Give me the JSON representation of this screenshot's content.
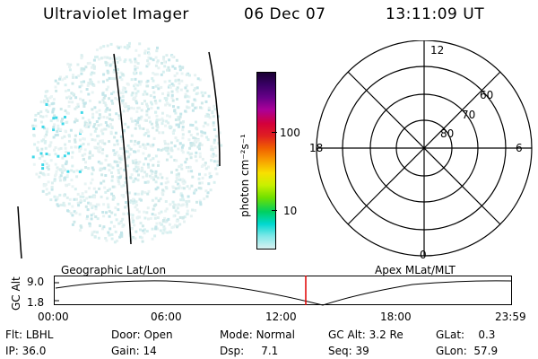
{
  "header": {
    "instrument": "Ultraviolet Imager",
    "date": "06 Dec 07",
    "time": "13:11:09 UT"
  },
  "colorbar": {
    "unit_label": "photon cm⁻²s⁻¹",
    "ticks": [
      "100",
      "10"
    ],
    "colors": [
      "#1a0033",
      "#3a0066",
      "#660088",
      "#aa0099",
      "#d4003a",
      "#e02020",
      "#f06000",
      "#f8a000",
      "#f8e000",
      "#c8f000",
      "#70e000",
      "#00d060",
      "#00d8d0",
      "#80e8e8",
      "#d8f0f0"
    ]
  },
  "polar": {
    "mlt_labels": {
      "top": "12",
      "left": "18",
      "right": "6",
      "bottom": "0"
    },
    "lat_labels": [
      "60",
      "70",
      "80"
    ]
  },
  "timeline": {
    "left_label": "Geographic Lat/Lon",
    "right_label": "Apex MLat/MLT",
    "axis_title": "GC Alt",
    "y_ticks": [
      "9.0",
      "1.8"
    ],
    "x_ticks": [
      "00:00",
      "06:00",
      "12:00",
      "18:00",
      "23:59"
    ],
    "marker_color": "#e00000"
  },
  "status": {
    "flt_label": "Flt:",
    "flt_value": "LBHL",
    "door_label": "Door:",
    "door_value": "Open",
    "mode_label": "Mode:",
    "mode_value": "Normal",
    "gcalt_label": "GC Alt:",
    "gcalt_value": "3.2 Re",
    "glat_label": "GLat:",
    "glat_value": "0.3",
    "ip_label": "IP:",
    "ip_value": "36.0",
    "gain_label": "Gain:",
    "gain_value": "14",
    "dsp_label": "Dsp:",
    "dsp_value": "7.1",
    "seq_label": "Seq:",
    "seq_value": "39",
    "glon_label": "GLon:",
    "glon_value": "57.9"
  }
}
